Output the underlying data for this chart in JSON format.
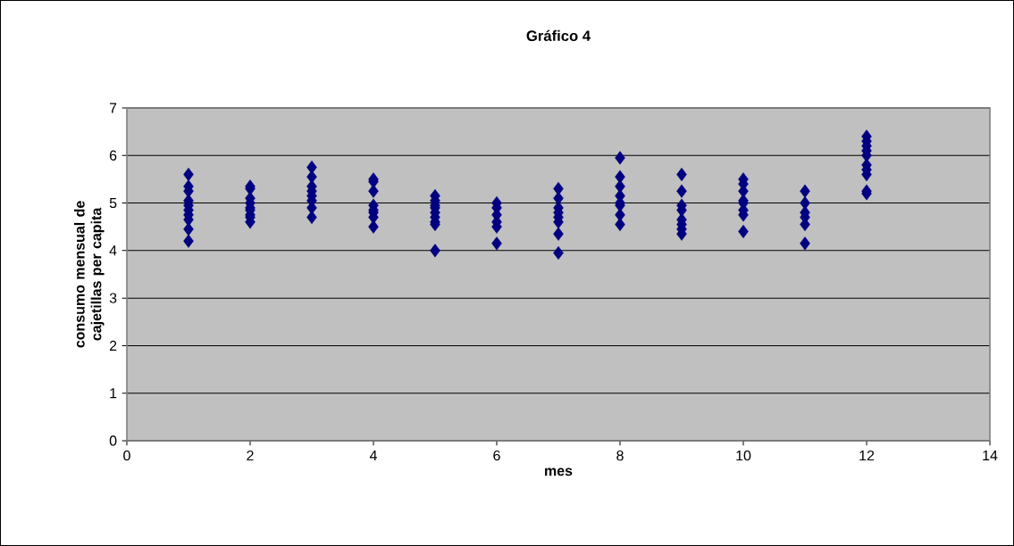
{
  "chart_data": {
    "type": "scatter",
    "title": "Gráfico 4",
    "xlabel": "mes",
    "ylabel": "consumo mensual de cajetillas per capita",
    "series": [
      {
        "color": "#000080",
        "x": [
          1,
          1,
          1,
          1,
          1,
          1,
          1,
          1,
          1,
          1,
          2,
          2,
          2,
          2,
          2,
          2,
          2,
          2,
          2,
          3,
          3,
          3,
          3,
          3,
          3,
          3,
          3,
          4,
          4,
          4,
          4,
          4,
          4,
          4,
          4,
          5,
          5,
          5,
          5,
          5,
          5,
          5,
          5,
          5,
          6,
          6,
          6,
          6,
          6,
          6,
          7,
          7,
          7,
          7,
          7,
          7,
          7,
          7,
          8,
          8,
          8,
          8,
          8,
          8,
          8,
          8,
          9,
          9,
          9,
          9,
          9,
          9,
          9,
          9,
          10,
          10,
          10,
          10,
          10,
          10,
          10,
          10,
          11,
          11,
          11,
          11,
          11,
          11,
          12,
          12,
          12,
          12,
          12,
          12,
          12,
          12,
          12,
          12
        ],
        "values": [
          5.6,
          5.35,
          5.25,
          5.05,
          4.95,
          4.85,
          4.75,
          4.65,
          4.45,
          4.2,
          5.35,
          5.3,
          5.1,
          5.0,
          4.9,
          4.85,
          4.75,
          4.7,
          4.6,
          5.75,
          5.55,
          5.35,
          5.25,
          5.15,
          5.05,
          4.9,
          4.7,
          5.5,
          5.45,
          5.25,
          4.95,
          4.85,
          4.8,
          4.7,
          4.5,
          5.15,
          5.05,
          4.95,
          4.9,
          4.8,
          4.7,
          4.6,
          4.55,
          4.0,
          5.0,
          4.9,
          4.75,
          4.6,
          4.5,
          4.15,
          5.3,
          5.1,
          4.9,
          4.8,
          4.7,
          4.6,
          4.35,
          3.95,
          5.95,
          5.55,
          5.35,
          5.15,
          5.0,
          4.95,
          4.75,
          4.55,
          5.6,
          5.25,
          4.95,
          4.85,
          4.65,
          4.55,
          4.45,
          4.35,
          5.5,
          5.4,
          5.25,
          5.05,
          5.0,
          4.85,
          4.75,
          4.4,
          5.25,
          5.0,
          4.8,
          4.7,
          4.55,
          4.15,
          6.4,
          6.3,
          6.2,
          6.1,
          6.0,
          5.8,
          5.7,
          5.6,
          5.25,
          5.2
        ]
      }
    ],
    "xlim": [
      0,
      14
    ],
    "xticks": [
      0,
      2,
      4,
      6,
      8,
      10,
      12,
      14
    ],
    "ylim": [
      0,
      7
    ],
    "yticks": [
      0,
      1,
      2,
      3,
      4,
      5,
      6,
      7
    ],
    "grid": "y",
    "marker": "diamond"
  }
}
